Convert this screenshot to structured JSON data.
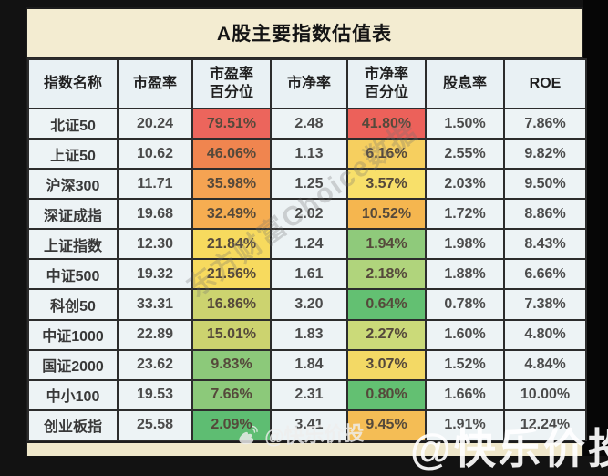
{
  "page_background": "#121212",
  "chart_data": {
    "type": "table",
    "title": "A股主要指数估值表",
    "columns": [
      "指数名称",
      "市盈率",
      "市盈率百分位",
      "市净率",
      "市净率百分位",
      "股息率",
      "ROE"
    ],
    "rows": [
      [
        "北证50",
        "20.24",
        "79.51%",
        "2.48",
        "41.80%",
        "1.50%",
        "7.86%"
      ],
      [
        "上证50",
        "10.62",
        "46.06%",
        "1.13",
        "6.16%",
        "2.55%",
        "9.82%"
      ],
      [
        "沪深300",
        "11.71",
        "35.98%",
        "1.25",
        "3.57%",
        "2.03%",
        "9.50%"
      ],
      [
        "深证成指",
        "19.68",
        "32.49%",
        "2.02",
        "10.52%",
        "1.72%",
        "8.86%"
      ],
      [
        "上证指数",
        "12.30",
        "21.84%",
        "1.24",
        "1.94%",
        "1.98%",
        "8.43%"
      ],
      [
        "中证500",
        "19.32",
        "21.56%",
        "1.61",
        "2.18%",
        "1.88%",
        "6.66%"
      ],
      [
        "科创50",
        "33.31",
        "16.86%",
        "3.20",
        "0.64%",
        "0.78%",
        "7.38%"
      ],
      [
        "中证1000",
        "22.89",
        "15.01%",
        "1.83",
        "2.27%",
        "1.60%",
        "4.80%"
      ],
      [
        "国证2000",
        "23.62",
        "9.83%",
        "1.84",
        "3.07%",
        "1.52%",
        "4.84%"
      ],
      [
        "中小100",
        "19.53",
        "7.66%",
        "2.31",
        "0.80%",
        "1.66%",
        "10.00%"
      ],
      [
        "创业板指",
        "25.58",
        "2.09%",
        "3.41",
        "9.45%",
        "1.91%",
        "12.24%"
      ]
    ],
    "heatmap_columns": [
      "市盈率百分位",
      "市净率百分位"
    ],
    "legend_position": "none",
    "grid": true
  },
  "header_display": [
    "指数名称",
    "市盈率",
    "市盈率\n百分位",
    "市净率",
    "市净率\n百分位",
    "股息率",
    "ROE"
  ],
  "cell_colors": {
    "pe_percentile": [
      "#ec655c",
      "#f0854f",
      "#f5a352",
      "#f6ad51",
      "#f7da5e",
      "#f7da5e",
      "#ccd36f",
      "#ccd36f",
      "#8cc97a",
      "#8cc97a",
      "#5ebd72"
    ],
    "pb_percentile": [
      "#ec615a",
      "#f6cf5f",
      "#f8e06a",
      "#f5b64f",
      "#8fca7b",
      "#b0d47c",
      "#63c072",
      "#cbda79",
      "#f3d965",
      "#63c072",
      "#f4bd55"
    ]
  },
  "watermarks": {
    "diagonal_text": "东方财富Choice数据",
    "weibo_handle": "@快乐价投",
    "corner_text": "@快乐价投"
  }
}
